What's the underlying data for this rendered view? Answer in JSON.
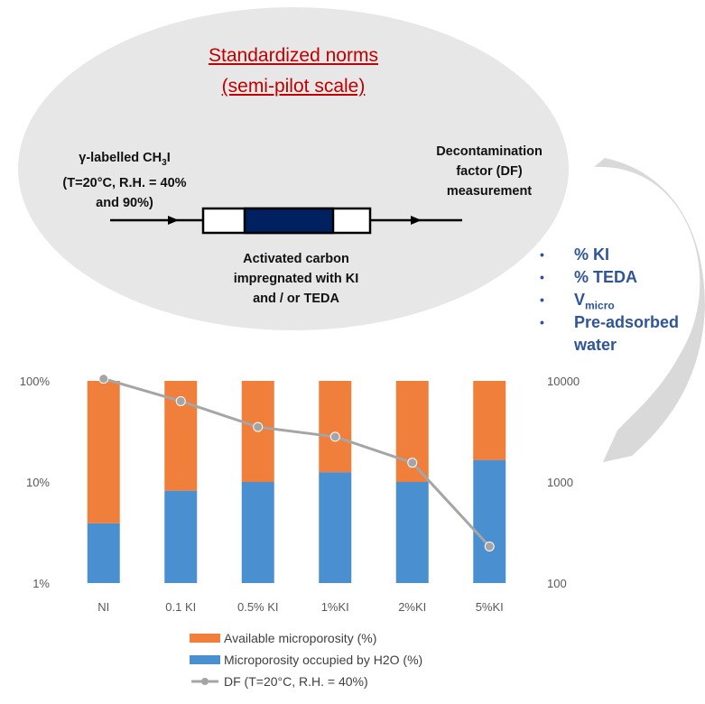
{
  "diagram": {
    "title_line1": "Standardized norms",
    "title_line2": "(semi-pilot scale)",
    "input_label": {
      "line1_prefix": "γ-labelled CH",
      "line1_sub": "3",
      "line1_suffix": "I",
      "line2": "(T=20°C, R.H. = 40%",
      "line3": "and 90%)"
    },
    "output_label": [
      "Decontamination",
      "factor (DF)",
      "measurement"
    ],
    "bed_label": [
      "Activated carbon",
      "impregnated with KI",
      "and / or TEDA"
    ],
    "colors": {
      "ellipse": "#e7e7e7",
      "bed": "#002060",
      "title": "#c00000"
    }
  },
  "parameters": {
    "bullet_symbol": "•",
    "items": [
      {
        "text": "% KI"
      },
      {
        "text": "% TEDA"
      },
      {
        "text": "V",
        "sub": "micro"
      },
      {
        "text": "Pre-adsorbed"
      },
      {
        "text": "water"
      }
    ],
    "color": "#2f5597"
  },
  "chart_data": {
    "type": "bar",
    "stacked": true,
    "categories": [
      "NI",
      "0.1 KI",
      "0.5% KI",
      "1%KI",
      "2%KI",
      "5%KI"
    ],
    "y_scale": "log",
    "ylim": [
      1,
      100
    ],
    "y_ticks": [
      "1%",
      "10%",
      "100%"
    ],
    "y2_scale": "log",
    "y2lim": [
      100,
      10000
    ],
    "y2_ticks": [
      "100",
      "1000",
      "10000"
    ],
    "series": [
      {
        "name": "Microporosity occupied by H2O (%)",
        "kind": "bar",
        "color": "#4a90d0",
        "values": [
          3.9,
          8.2,
          10,
          12.5,
          10,
          16.5
        ]
      },
      {
        "name": "Available microporosity (%)",
        "kind": "bar",
        "color": "#f07f3c",
        "values": [
          96.1,
          91.8,
          90,
          87.5,
          90,
          83.5
        ]
      },
      {
        "name": "DF (T=20°C, R.H. = 40%)",
        "kind": "line",
        "axis": "right",
        "color": "#a5a5a5",
        "values": [
          10500,
          6300,
          3500,
          2800,
          1550,
          230
        ]
      }
    ],
    "legend_position": "bottom",
    "legend": [
      {
        "label": "Available microporosity (%)",
        "color": "#f07f3c",
        "kind": "bar"
      },
      {
        "label": "Microporosity occupied by H2O (%)",
        "color": "#4a90d0",
        "kind": "bar"
      },
      {
        "label": "DF (T=20°C, R.H. = 40%)",
        "color": "#a5a5a5",
        "kind": "line"
      }
    ],
    "grid": false
  }
}
